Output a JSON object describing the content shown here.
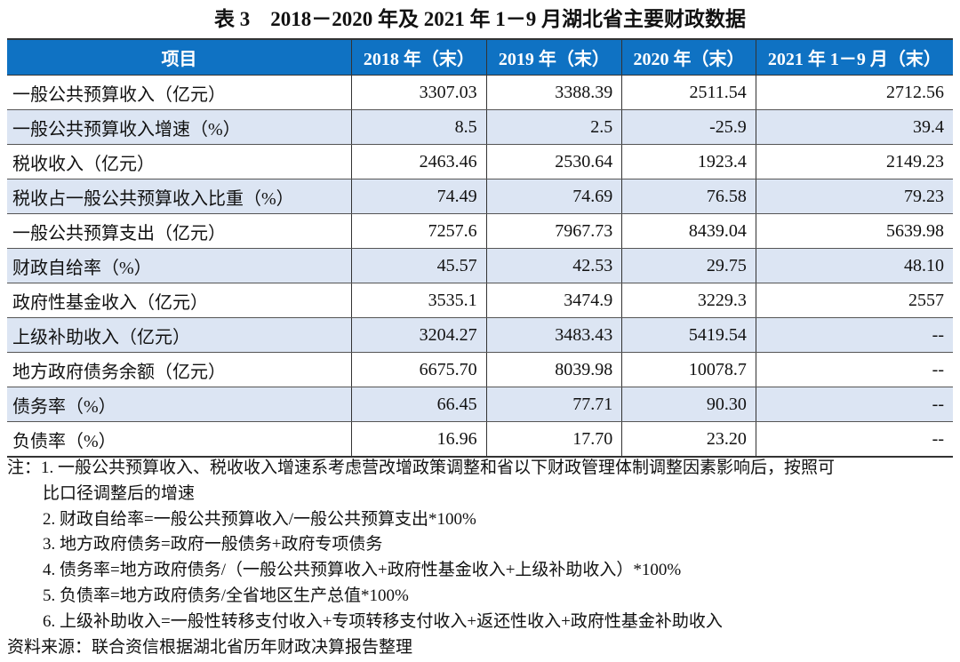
{
  "title": "表 3　2018－2020 年及 2021 年 1－9 月湖北省主要财政数据",
  "columns": [
    "项目",
    "2018 年（末）",
    "2019 年（末）",
    "2020 年（末）",
    "2021 年 1－9 月（末）"
  ],
  "rows": [
    [
      "一般公共预算收入（亿元）",
      "3307.03",
      "3388.39",
      "2511.54",
      "2712.56"
    ],
    [
      "一般公共预算收入增速（%）",
      "8.5",
      "2.5",
      "-25.9",
      "39.4"
    ],
    [
      "税收收入（亿元）",
      "2463.46",
      "2530.64",
      "1923.4",
      "2149.23"
    ],
    [
      "税收占一般公共预算收入比重（%）",
      "74.49",
      "74.69",
      "76.58",
      "79.23"
    ],
    [
      "一般公共预算支出（亿元）",
      "7257.6",
      "7967.73",
      "8439.04",
      "5639.98"
    ],
    [
      "财政自给率（%）",
      "45.57",
      "42.53",
      "29.75",
      "48.10"
    ],
    [
      "政府性基金收入（亿元）",
      "3535.1",
      "3474.9",
      "3229.3",
      "2557"
    ],
    [
      "上级补助收入（亿元）",
      "3204.27",
      "3483.43",
      "5419.54",
      "--"
    ],
    [
      "地方政府债务余额（亿元）",
      "6675.70",
      "8039.98",
      "10078.7",
      "--"
    ],
    [
      "债务率（%）",
      "66.45",
      "77.71",
      "90.30",
      "--"
    ],
    [
      "负债率（%）",
      "16.96",
      "17.70",
      "23.20",
      "--"
    ]
  ],
  "notes": [
    "注：1. 一般公共预算收入、税收收入增速系考虑营改增政策调整和省以下财政管理体制调整因素影响后，按照可",
    "比口径调整后的增速",
    "2. 财政自给率=一般公共预算收入/一般公共预算支出*100%",
    "3. 地方政府债务=政府一般债务+政府专项债务",
    "4. 债务率=地方政府债务/（一般公共预算收入+政府性基金收入+上级补助收入）*100%",
    "5. 负债率=地方政府债务/全省地区生产总值*100%",
    "6. 上级补助收入=一般性转移支付收入+专项转移支付收入+返还性收入+政府性基金补助收入"
  ],
  "source": "资料来源：联合资信根据湖北省历年财政决算报告整理",
  "colors": {
    "header": "#0f72c3",
    "alt_row": "#dce5f3"
  }
}
